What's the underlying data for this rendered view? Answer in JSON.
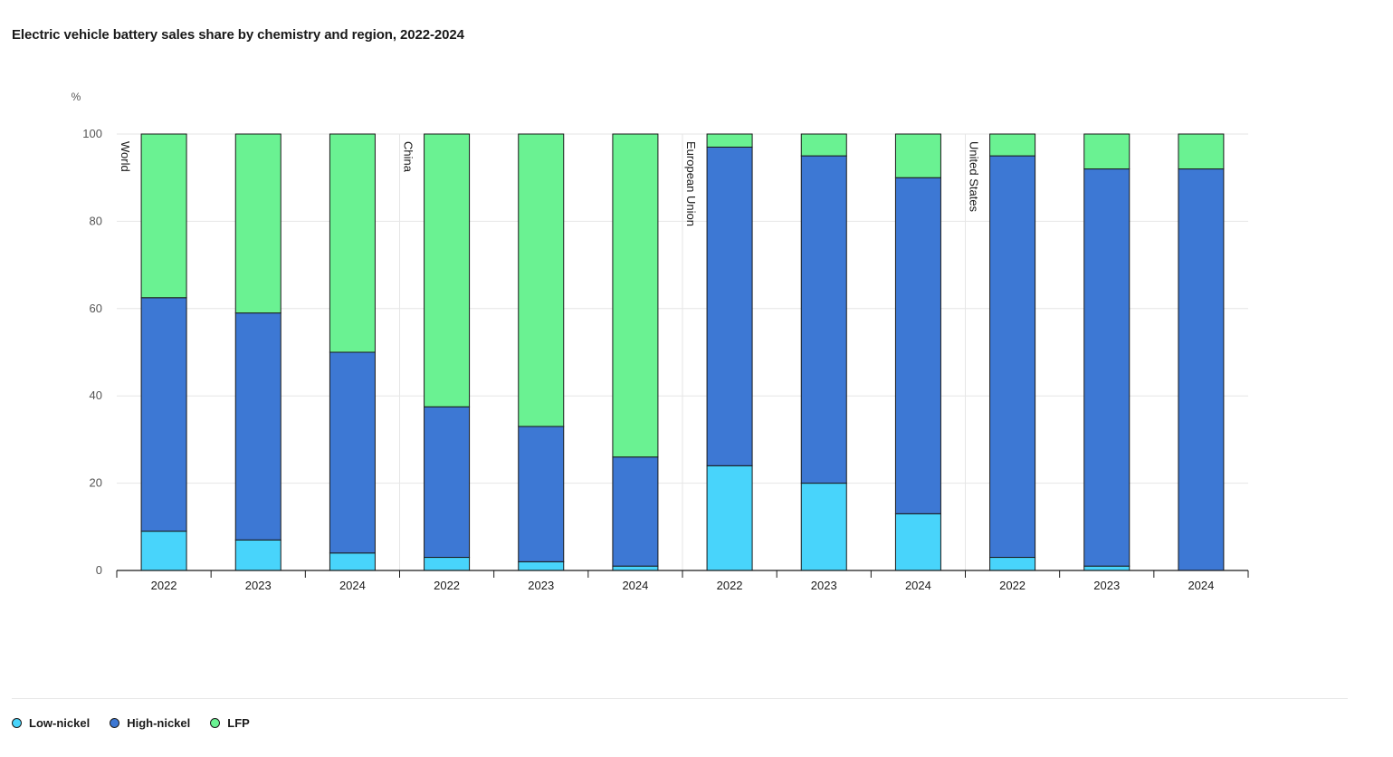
{
  "title": "Electric vehicle battery sales share by chemistry and region, 2022-2024",
  "colors": {
    "low_nickel": "#48d4fb",
    "high_nickel": "#3d78d4",
    "lfp": "#6af292",
    "grid": "#e6e6e6",
    "axis": "#1a1a1a"
  },
  "legend": [
    {
      "label": "Low-nickel",
      "color": "#48d4fb"
    },
    {
      "label": "High-nickel",
      "color": "#3d78d4"
    },
    {
      "label": "LFP",
      "color": "#6af292"
    }
  ],
  "chart_data": {
    "type": "bar",
    "stacked": true,
    "title": "Electric vehicle battery sales share by chemistry and region, 2022-2024",
    "ylabel": "%",
    "ylim": [
      0,
      100
    ],
    "yticks": [
      0,
      20,
      40,
      60,
      80,
      100
    ],
    "grid": true,
    "legend_position": "bottom-left",
    "groups": [
      "World",
      "China",
      "European Union",
      "United States"
    ],
    "categories": [
      "2022",
      "2023",
      "2024",
      "2022",
      "2023",
      "2024",
      "2022",
      "2023",
      "2024",
      "2022",
      "2023",
      "2024"
    ],
    "series": [
      {
        "name": "Low-nickel",
        "color": "#48d4fb",
        "values": [
          9,
          7,
          4,
          3,
          2,
          1,
          24,
          20,
          13,
          3,
          1,
          0
        ]
      },
      {
        "name": "High-nickel",
        "color": "#3d78d4",
        "values": [
          53.5,
          52,
          46,
          34.5,
          31,
          25,
          73,
          75,
          77,
          92,
          91,
          92
        ]
      },
      {
        "name": "LFP",
        "color": "#6af292",
        "values": [
          37.5,
          41,
          50,
          62.5,
          67,
          74,
          3,
          5,
          10,
          5,
          8,
          8
        ]
      }
    ]
  }
}
